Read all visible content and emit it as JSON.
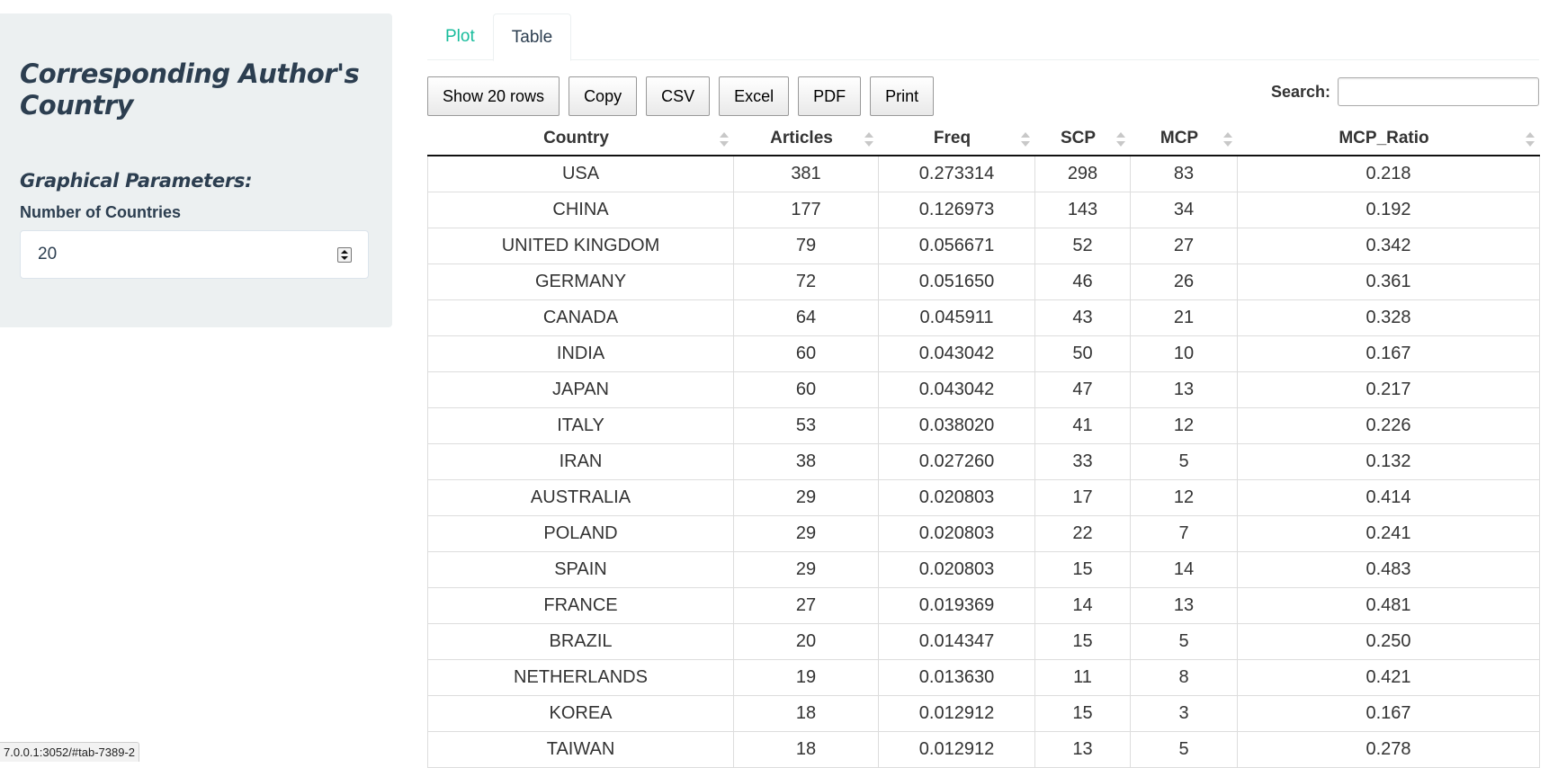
{
  "sidebar": {
    "title": "Corresponding Author's Country",
    "params_heading": "Graphical Parameters:",
    "num_countries_label": "Number of Countries",
    "num_countries_value": "20"
  },
  "tabs": [
    {
      "label": "Plot",
      "active": false
    },
    {
      "label": "Table",
      "active": true
    }
  ],
  "toolbar": {
    "show_rows": "Show 20 rows",
    "copy": "Copy",
    "csv": "CSV",
    "excel": "Excel",
    "pdf": "PDF",
    "print": "Print",
    "search_label": "Search:",
    "search_value": ""
  },
  "table": {
    "columns": [
      "Country",
      "Articles",
      "Freq",
      "SCP",
      "MCP",
      "MCP_Ratio"
    ],
    "rows": [
      [
        "USA",
        "381",
        "0.273314",
        "298",
        "83",
        "0.218"
      ],
      [
        "CHINA",
        "177",
        "0.126973",
        "143",
        "34",
        "0.192"
      ],
      [
        "UNITED KINGDOM",
        "79",
        "0.056671",
        "52",
        "27",
        "0.342"
      ],
      [
        "GERMANY",
        "72",
        "0.051650",
        "46",
        "26",
        "0.361"
      ],
      [
        "CANADA",
        "64",
        "0.045911",
        "43",
        "21",
        "0.328"
      ],
      [
        "INDIA",
        "60",
        "0.043042",
        "50",
        "10",
        "0.167"
      ],
      [
        "JAPAN",
        "60",
        "0.043042",
        "47",
        "13",
        "0.217"
      ],
      [
        "ITALY",
        "53",
        "0.038020",
        "41",
        "12",
        "0.226"
      ],
      [
        "IRAN",
        "38",
        "0.027260",
        "33",
        "5",
        "0.132"
      ],
      [
        "AUSTRALIA",
        "29",
        "0.020803",
        "17",
        "12",
        "0.414"
      ],
      [
        "POLAND",
        "29",
        "0.020803",
        "22",
        "7",
        "0.241"
      ],
      [
        "SPAIN",
        "29",
        "0.020803",
        "15",
        "14",
        "0.483"
      ],
      [
        "FRANCE",
        "27",
        "0.019369",
        "14",
        "13",
        "0.481"
      ],
      [
        "BRAZIL",
        "20",
        "0.014347",
        "15",
        "5",
        "0.250"
      ],
      [
        "NETHERLANDS",
        "19",
        "0.013630",
        "11",
        "8",
        "0.421"
      ],
      [
        "KOREA",
        "18",
        "0.012912",
        "15",
        "3",
        "0.167"
      ],
      [
        "TAIWAN",
        "18",
        "0.012912",
        "13",
        "5",
        "0.278"
      ]
    ]
  },
  "status_bar": {
    "url": "7.0.0.1:3052/#tab-7389-2"
  },
  "colors": {
    "sidebar_bg": "#ecf0f1",
    "heading": "#2c3e50",
    "tab_link": "#18bc9c"
  }
}
